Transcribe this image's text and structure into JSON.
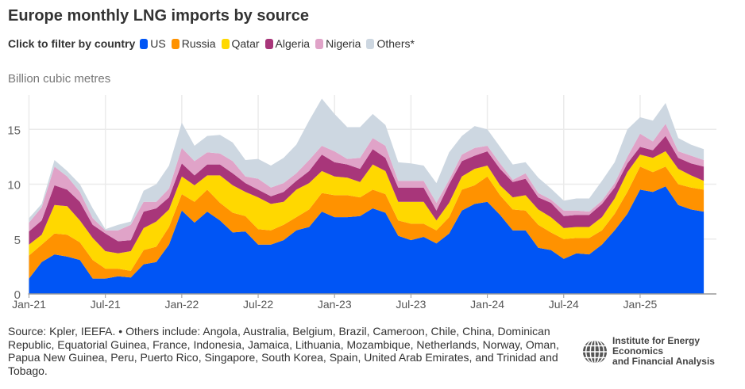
{
  "title": "Europe monthly LNG imports by source",
  "legend": {
    "label": "Click to filter by country",
    "items": [
      {
        "name": "US",
        "color": "#0055f5"
      },
      {
        "name": "Russia",
        "color": "#ff9200"
      },
      {
        "name": "Qatar",
        "color": "#ffd800"
      },
      {
        "name": "Algeria",
        "color": "#a8367a"
      },
      {
        "name": "Nigeria",
        "color": "#e0a3c8"
      },
      {
        "name": "Others*",
        "color": "#cdd7e1"
      }
    ]
  },
  "footer": {
    "source": "Source: Kpler, IEEFA. • Others include: Angola, Australia, Belgium, Brazil, Cameroon, Chile, China, Dominican Republic, Equatorial Guinea, France, Indonesia, Jamaica, Lithuania, Mozambique, Netherlands, Norway, Oman, Papua New Guinea, Peru, Puerto Rico, Singapore, South Korea, Spain, United Arab Emirates, and Trinidad and Tobago.",
    "logo_text_line1": "Institute for Energy Economics",
    "logo_text_line2": "and Financial Analysis"
  },
  "chart_data": {
    "type": "area",
    "stacked": true,
    "title": "Europe monthly LNG imports by source",
    "ylabel": "Billion cubic metres",
    "xlabel": "",
    "ylim": [
      0,
      18
    ],
    "yticks": [
      0,
      5,
      10,
      15
    ],
    "xticks": [
      "Jan-21",
      "Jul-21",
      "Jan-22",
      "Jul-22",
      "Jan-23",
      "Jul-23",
      "Jan-24",
      "Jul-24",
      "Jan-25"
    ],
    "grid": true,
    "legend_position": "top-left",
    "x_start": "2021-01",
    "x_end": "2025-06",
    "x_frequency": "monthly",
    "series": [
      {
        "name": "US",
        "color": "#0055f5",
        "values": [
          1.4,
          2.9,
          3.6,
          3.4,
          3.1,
          1.4,
          1.4,
          1.6,
          1.5,
          2.7,
          2.9,
          4.5,
          7.6,
          6.5,
          7.5,
          6.7,
          5.6,
          5.7,
          4.5,
          4.5,
          4.9,
          5.8,
          6.1,
          7.5,
          7.0,
          7.0,
          7.1,
          7.8,
          7.4,
          5.3,
          4.9,
          5.2,
          4.6,
          5.5,
          7.6,
          8.2,
          8.4,
          7.2,
          5.8,
          5.8,
          4.2,
          4.0,
          3.2,
          3.7,
          3.6,
          4.5,
          5.8,
          7.3,
          9.5,
          9.3,
          9.8,
          8.1,
          7.7,
          7.5
        ]
      },
      {
        "name": "Russia",
        "color": "#ff9200",
        "values": [
          2.1,
          1.6,
          1.9,
          2.0,
          1.6,
          1.7,
          0.9,
          0.7,
          0.6,
          1.3,
          1.4,
          1.6,
          1.5,
          1.9,
          2.0,
          1.6,
          1.8,
          1.4,
          1.4,
          1.3,
          1.4,
          1.2,
          1.6,
          1.7,
          2.0,
          2.0,
          1.7,
          1.7,
          1.7,
          1.4,
          1.5,
          1.2,
          1.2,
          1.5,
          1.9,
          1.7,
          2.3,
          1.8,
          1.9,
          1.8,
          2.1,
          1.6,
          1.8,
          1.4,
          1.5,
          1.3,
          1.5,
          2.0,
          2.1,
          1.8,
          1.8,
          1.9,
          2.0,
          2.0
        ]
      },
      {
        "name": "Qatar",
        "color": "#ffd800",
        "values": [
          1.0,
          0.9,
          2.6,
          2.6,
          2.0,
          2.0,
          1.6,
          1.4,
          1.8,
          2.0,
          2.3,
          1.6,
          1.6,
          1.5,
          1.3,
          2.5,
          2.5,
          2.2,
          2.9,
          2.4,
          2.1,
          2.5,
          2.4,
          2.0,
          1.7,
          1.6,
          1.4,
          2.3,
          2.1,
          1.7,
          2.0,
          2.0,
          0.9,
          1.3,
          1.2,
          1.5,
          1.0,
          0.9,
          1.1,
          1.4,
          1.4,
          1.4,
          1.0,
          1.0,
          1.0,
          1.2,
          1.4,
          1.8,
          1.1,
          1.3,
          1.4,
          1.4,
          1.1,
          0.8
        ]
      },
      {
        "name": "Algeria",
        "color": "#a8367a",
        "values": [
          1.2,
          1.3,
          1.8,
          1.5,
          1.7,
          1.2,
          1.6,
          1.1,
          1.0,
          1.5,
          1.2,
          1.1,
          1.2,
          0.9,
          1.0,
          1.0,
          1.1,
          0.8,
          0.7,
          0.7,
          0.9,
          0.8,
          1.1,
          1.5,
          1.3,
          1.2,
          1.2,
          1.4,
          1.2,
          1.3,
          1.3,
          1.3,
          0.9,
          1.7,
          1.4,
          1.2,
          1.3,
          1.5,
          1.4,
          1.5,
          1.1,
          1.3,
          1.1,
          1.1,
          1.1,
          1.2,
          1.0,
          0.8,
          0.7,
          0.7,
          1.4,
          1.0,
          1.1,
          1.3
        ]
      },
      {
        "name": "Nigeria",
        "color": "#e0a3c8",
        "values": [
          0.8,
          1.2,
          1.7,
          1.2,
          0.9,
          0.6,
          0.3,
          1.0,
          1.4,
          0.9,
          0.6,
          0.8,
          1.4,
          1.3,
          1.1,
          1.0,
          1.1,
          0.6,
          1.0,
          0.8,
          0.8,
          0.7,
          1.0,
          0.8,
          1.0,
          0.5,
          1.0,
          1.0,
          1.1,
          0.6,
          0.6,
          0.6,
          0.7,
          0.4,
          0.6,
          0.7,
          0.5,
          0.5,
          0.2,
          0.5,
          0.4,
          0.3,
          0.5,
          0.4,
          0.3,
          0.3,
          0.4,
          0.6,
          1.2,
          0.8,
          1.1,
          0.6,
          0.7,
          0.6
        ]
      },
      {
        "name": "Others*",
        "color": "#cdd7e1",
        "values": [
          0.4,
          0.3,
          0.6,
          0.5,
          0.7,
          0.9,
          0.1,
          0.5,
          0.3,
          1.0,
          1.6,
          2.1,
          2.3,
          1.4,
          1.5,
          1.7,
          1.7,
          1.5,
          1.8,
          2.0,
          2.3,
          2.6,
          3.6,
          4.3,
          3.4,
          2.9,
          2.8,
          2.2,
          1.9,
          1.7,
          1.6,
          1.4,
          1.8,
          2.5,
          1.7,
          2.0,
          1.5,
          1.5,
          1.4,
          1.0,
          1.4,
          1.0,
          0.9,
          1.1,
          1.2,
          1.8,
          1.9,
          2.5,
          1.5,
          1.9,
          1.9,
          1.2,
          1.0,
          1.0
        ]
      }
    ]
  }
}
